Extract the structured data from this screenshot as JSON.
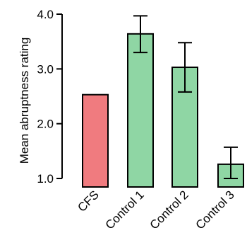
{
  "chart_data": {
    "type": "bar",
    "title": "",
    "xlabel": "",
    "ylabel": "Mean abruptness rating",
    "categories": [
      "CFS",
      "Control 1",
      "Control 2",
      "Control 3"
    ],
    "values": [
      2.53,
      3.64,
      3.03,
      1.26
    ],
    "errors": [
      null,
      [
        3.3,
        3.97
      ],
      [
        2.58,
        3.48
      ],
      [
        1.0,
        1.57
      ]
    ],
    "colors": [
      "#f07b7f",
      "#8fd6a4",
      "#8fd6a4",
      "#8fd6a4"
    ],
    "ylim": [
      1.0,
      4.0
    ],
    "yticks": [
      "1.0",
      "2.0",
      "3.0",
      "4.0"
    ],
    "grid": false,
    "legend": "none"
  }
}
